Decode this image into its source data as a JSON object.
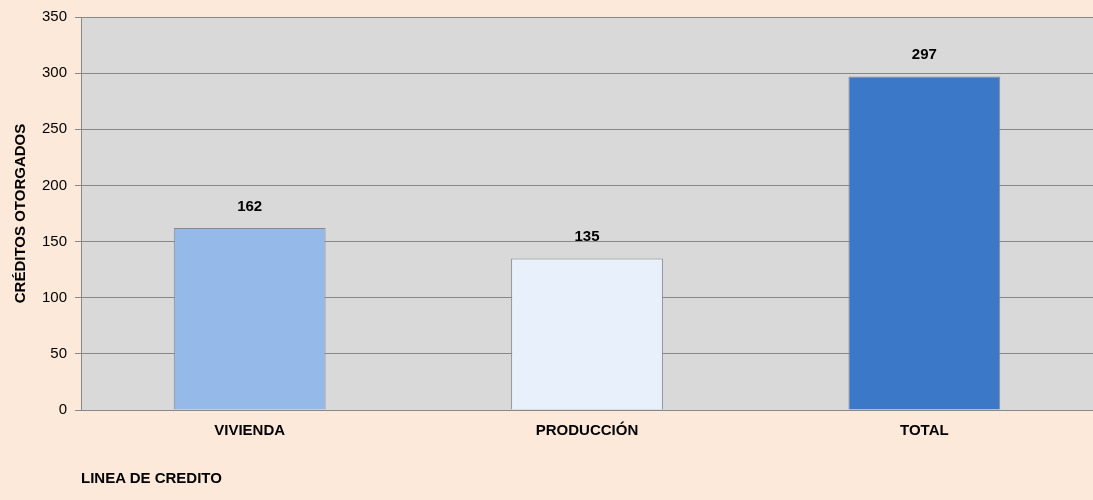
{
  "chart_data": {
    "type": "bar",
    "xlabel": "LINEA DE CREDITO",
    "ylabel": "CRÉDITOS OTORGADOS",
    "categories": [
      "VIVIENDA",
      "PRODUCCIÓN",
      "TOTAL"
    ],
    "values": [
      162,
      135,
      297
    ],
    "colors": [
      "#95b9e8",
      "#e8f1fb",
      "#3b78c8"
    ],
    "ylim": [
      0,
      350
    ],
    "yticks": [
      0,
      50,
      100,
      150,
      200,
      250,
      300,
      350
    ],
    "grid": "y",
    "data_labels": true
  }
}
